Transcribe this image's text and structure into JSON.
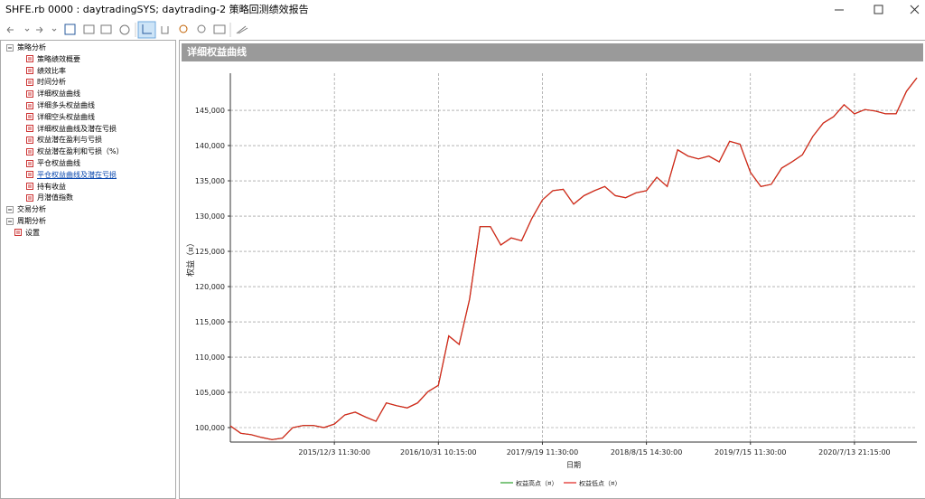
{
  "window": {
    "title": "SHFE.rb 0000 : daytradingSYS; daytrading-2 策略回测绩效报告"
  },
  "tree": {
    "nodes": [
      {
        "label": "策略分析",
        "children": [
          "策略绩效概要",
          "绩效比率",
          "时间分析",
          "详细权益曲线",
          "详细多头权益曲线",
          "详细空头权益曲线",
          "详细权益曲线及潜在亏损",
          "权益潜在盈利与亏损",
          "权益潜在盈利和亏损（%）",
          "平仓权益曲线",
          "平仓权益曲线及潜在亏损",
          "持有收益",
          "月潜值指数"
        ]
      },
      {
        "label": "交易分析",
        "children": []
      },
      {
        "label": "周期分析",
        "children": []
      },
      {
        "label": "设置",
        "children": []
      }
    ]
  },
  "chart_data": {
    "type": "line",
    "title": "详细权益曲线",
    "xlabel": "日期",
    "ylabel": "权益（¤）",
    "categories": [
      null,
      null,
      null,
      null,
      null,
      null,
      null,
      null,
      null,
      null,
      "2015/12/3 11:30:00",
      null,
      null,
      null,
      null,
      null,
      null,
      null,
      null,
      null,
      "2016/10/31 10:15:00",
      null,
      null,
      null,
      null,
      null,
      null,
      null,
      null,
      null,
      "2017/9/19 11:30:00",
      null,
      null,
      null,
      null,
      null,
      null,
      null,
      null,
      null,
      "2018/8/15 14:30:00",
      null,
      null,
      null,
      null,
      null,
      null,
      null,
      null,
      null,
      "2019/7/15 11:30:00",
      null,
      null,
      null,
      null,
      null,
      null,
      null,
      null,
      null,
      "2020/7/13 21:15:00",
      null,
      null,
      null,
      null,
      null,
      null
    ],
    "series": [
      {
        "name": "权益高点（¤）",
        "color": "#2ca02c",
        "values": [
          100250,
          99200,
          99000,
          98600,
          98300,
          98500,
          100000,
          100300,
          100300,
          100000,
          100500,
          101800,
          102200,
          101500,
          100900,
          103500,
          103100,
          102800,
          103500,
          105100,
          106000,
          113000,
          111800,
          118200,
          128500,
          128500,
          125900,
          126900,
          126500,
          129700,
          132300,
          133600,
          133800,
          131700,
          132900,
          133600,
          134200,
          132900,
          132600,
          133300,
          133600,
          135500,
          134200,
          139400,
          138500,
          138100,
          138500,
          137700,
          140600,
          140200,
          136200,
          134200,
          134500,
          136800,
          137700,
          138700,
          141300,
          143200,
          144100,
          145800,
          144500,
          145100,
          144900,
          144500,
          144500,
          147700,
          149600
        ]
      },
      {
        "name": "权益低点（¤）",
        "color": "#e0201b",
        "values": [
          100250,
          99200,
          99000,
          98600,
          98300,
          98500,
          100000,
          100300,
          100300,
          100000,
          100500,
          101800,
          102200,
          101500,
          100900,
          103500,
          103100,
          102800,
          103500,
          105100,
          106000,
          113000,
          111800,
          118200,
          128500,
          128500,
          125900,
          126900,
          126500,
          129700,
          132300,
          133600,
          133800,
          131700,
          132900,
          133600,
          134200,
          132900,
          132600,
          133300,
          133600,
          135500,
          134200,
          139400,
          138500,
          138100,
          138500,
          137700,
          140600,
          140200,
          136200,
          134200,
          134500,
          136800,
          137700,
          138700,
          141300,
          143200,
          144100,
          145800,
          144500,
          145100,
          144900,
          144500,
          144500,
          147700,
          149600
        ]
      }
    ],
    "ylim": [
      97950,
      150260
    ],
    "yticks": [
      {
        "value": 100000,
        "label": "100,000"
      },
      {
        "value": 105000,
        "label": "105,000"
      },
      {
        "value": 110000,
        "label": "110,000"
      },
      {
        "value": 115000,
        "label": "115,000"
      },
      {
        "value": 120000,
        "label": "120,000"
      },
      {
        "value": 125000,
        "label": "125,000"
      },
      {
        "value": 130000,
        "label": "130,000"
      },
      {
        "value": 135000,
        "label": "135,000"
      },
      {
        "value": 140000,
        "label": "140,000"
      },
      {
        "value": 145000,
        "label": "145,000"
      }
    ],
    "grid": true,
    "legend": "bottom"
  }
}
